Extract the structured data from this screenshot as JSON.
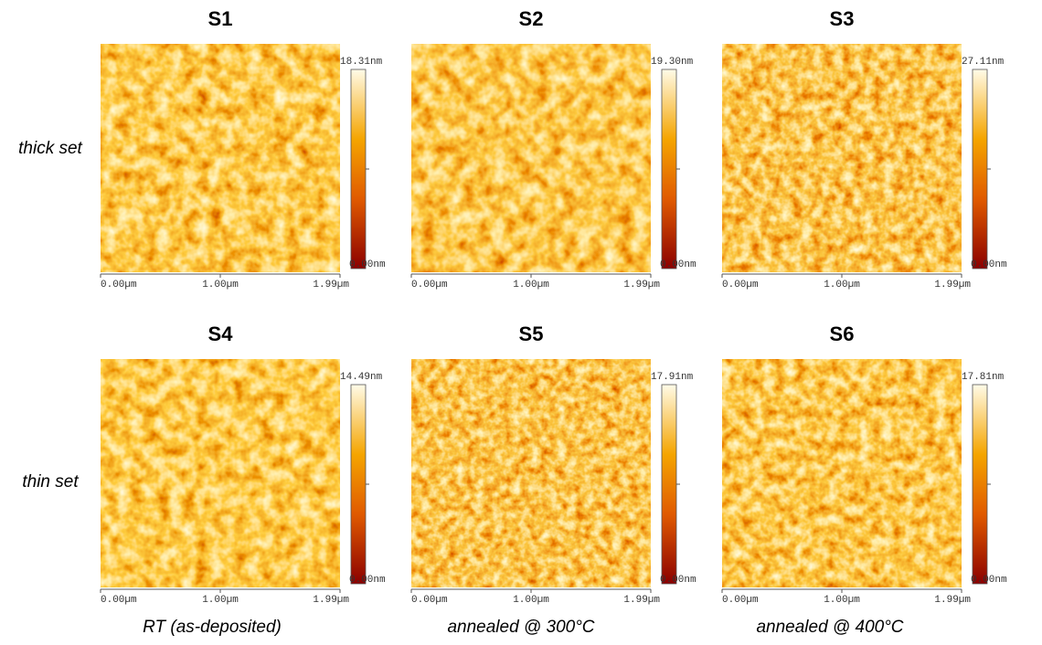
{
  "rows": [
    {
      "label": "thick set"
    },
    {
      "label": "thin set"
    }
  ],
  "columns": [
    {
      "label": "RT (as-deposited)"
    },
    {
      "label": "annealed @ 300°C"
    },
    {
      "label": "annealed @ 400°C"
    }
  ],
  "panels": [
    {
      "title": "S1",
      "scale_max": "18.31nm",
      "scale_min": "0.00nm",
      "x_labels": [
        "0.00µm",
        "1.00µm",
        "1.99µm"
      ]
    },
    {
      "title": "S2",
      "scale_max": "19.30nm",
      "scale_min": "0.00nm",
      "x_labels": [
        "0.00µm",
        "1.00µm",
        "1.99µm"
      ]
    },
    {
      "title": "S3",
      "scale_max": "27.11nm",
      "scale_min": "0.00nm",
      "x_labels": [
        "0.00µm",
        "1.00µm",
        "1.99µm"
      ]
    },
    {
      "title": "S4",
      "scale_max": "14.49nm",
      "scale_min": "0.00nm",
      "x_labels": [
        "0.00µm",
        "1.00µm",
        "1.99µm"
      ]
    },
    {
      "title": "S5",
      "scale_max": "17.91nm",
      "scale_min": "0.00nm",
      "x_labels": [
        "0.00µm",
        "1.00µm",
        "1.99µm"
      ]
    },
    {
      "title": "S6",
      "scale_max": "17.81nm",
      "scale_min": "0.00nm",
      "x_labels": [
        "0.00µm",
        "1.00µm",
        "1.99µm"
      ]
    }
  ]
}
